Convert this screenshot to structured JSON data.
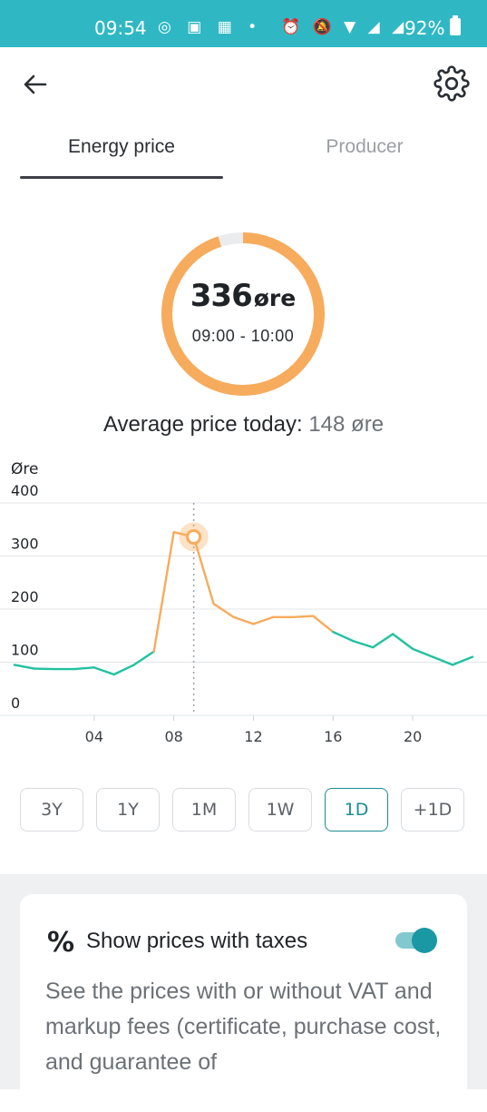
{
  "status_bar": {
    "time": "09:54",
    "left_icons": "◎ ▣ ▦ •",
    "right_icons": "⏰ 🔕 ▼ ◢ ◢",
    "battery": "92%"
  },
  "header": {
    "back_icon": "arrow-left-icon",
    "settings_icon": "gear-icon"
  },
  "tabs": [
    {
      "label": "Energy price",
      "active": true
    },
    {
      "label": "Producer",
      "active": false
    }
  ],
  "current_price": {
    "value": "336",
    "unit": "øre",
    "interval": "09:00 - 10:00",
    "gauge_fraction": 0.95,
    "gauge_color": "#f7ab5c"
  },
  "average": {
    "label": "Average price today:",
    "value": "148 øre"
  },
  "chart_data": {
    "type": "line",
    "ylabel": "Øre",
    "ylim": [
      0,
      400
    ],
    "yticks": [
      "0",
      "100",
      "200",
      "300",
      "400"
    ],
    "xlim": [
      0,
      23
    ],
    "xticks": [
      {
        "x": 4,
        "label": "04"
      },
      {
        "x": 8,
        "label": "08"
      },
      {
        "x": 12,
        "label": "12"
      },
      {
        "x": 16,
        "label": "16"
      },
      {
        "x": 20,
        "label": "20"
      }
    ],
    "grid": true,
    "x": [
      0,
      1,
      2,
      3,
      4,
      5,
      6,
      7,
      8,
      9,
      10,
      11,
      12,
      13,
      14,
      15,
      16,
      17,
      18,
      19,
      20,
      21,
      22,
      23
    ],
    "values": [
      95,
      88,
      87,
      87,
      90,
      77,
      95,
      120,
      345,
      336,
      210,
      185,
      172,
      185,
      185,
      187,
      157,
      140,
      128,
      153,
      125,
      110,
      95,
      110
    ],
    "highlight_x": 9,
    "colors": {
      "low": "#22c1a0",
      "high": "#f7ab5c",
      "grid": "#e2e5e8",
      "marker": "#f7ab5c"
    }
  },
  "ranges": [
    {
      "label": "3Y",
      "active": false
    },
    {
      "label": "1Y",
      "active": false
    },
    {
      "label": "1M",
      "active": false
    },
    {
      "label": "1W",
      "active": false
    },
    {
      "label": "1D",
      "active": true
    },
    {
      "label": "+1D",
      "active": false
    }
  ],
  "tax_card": {
    "icon": "percent-icon",
    "title": "Show prices with taxes",
    "toggle_on": true,
    "description": "See the prices with or without VAT and markup fees (certificate, purchase cost, and guarantee of"
  }
}
